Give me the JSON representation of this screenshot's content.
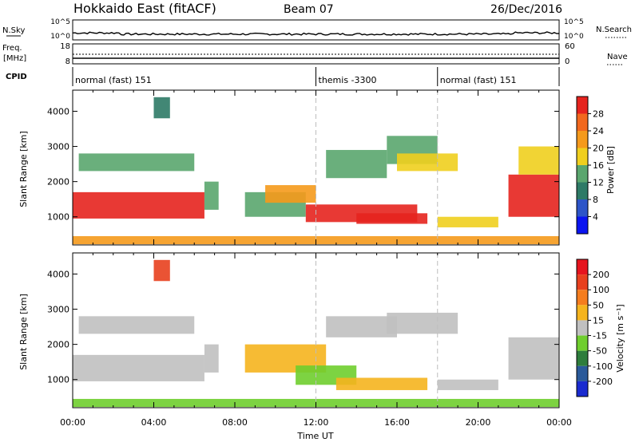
{
  "header": {
    "station": "Hokkaido East (fitACF)",
    "beam": "Beam 07",
    "date": "26/Dec/2016"
  },
  "nsky_panel": {
    "left_label": "N.Sky",
    "right_label": "N.Search",
    "left_ticks": [
      "10^5",
      "10^0"
    ],
    "right_ticks": [
      "10^5",
      "10^0"
    ]
  },
  "freq_panel": {
    "left_label_1": "Freq.",
    "left_label_2": "[MHz]",
    "right_label": "Nave",
    "left_ticks": [
      "18",
      "8"
    ],
    "right_ticks": [
      "60",
      "0"
    ]
  },
  "cpid_panel": {
    "label": "CPID",
    "segments": [
      {
        "text": "normal (fast) 151",
        "start_h": 0,
        "end_h": 12
      },
      {
        "text": "themis -3300",
        "start_h": 12,
        "end_h": 18
      },
      {
        "text": "normal (fast) 151",
        "start_h": 18,
        "end_h": 24
      }
    ]
  },
  "chart_data": [
    {
      "type": "heatmap",
      "name": "power",
      "ylabel": "Slant Range [km]",
      "yticks": [
        1000,
        2000,
        3000,
        4000
      ],
      "ylim": [
        200,
        4600
      ],
      "xlim": [
        0,
        24
      ],
      "colorbar": {
        "label": "Power [dB]",
        "ticks": [
          "4",
          "8",
          "12",
          "16",
          "20",
          "24",
          "28"
        ],
        "colors": [
          "#0a14f0",
          "#2d55c8",
          "#2e7a66",
          "#5aa66e",
          "#f0cf1e",
          "#f59a1c",
          "#f2681e",
          "#e6231e"
        ],
        "bins": [
          0,
          4,
          8,
          12,
          16,
          20,
          24,
          28,
          32
        ]
      },
      "regions": [
        {
          "x0": 0.0,
          "x1": 6.5,
          "y0": 950,
          "y1": 1700,
          "v": 29
        },
        {
          "x0": 0.3,
          "x1": 6.0,
          "y0": 2300,
          "y1": 2800,
          "v": 14
        },
        {
          "x0": 4.0,
          "x1": 4.8,
          "y0": 3800,
          "y1": 4400,
          "v": 10
        },
        {
          "x0": 6.5,
          "x1": 7.2,
          "y0": 1200,
          "y1": 2000,
          "v": 12
        },
        {
          "x0": 8.5,
          "x1": 11.5,
          "y0": 1000,
          "y1": 1700,
          "v": 12
        },
        {
          "x0": 9.5,
          "x1": 12.0,
          "y0": 1400,
          "y1": 1900,
          "v": 20
        },
        {
          "x0": 11.5,
          "x1": 17.0,
          "y0": 850,
          "y1": 1350,
          "v": 28
        },
        {
          "x0": 14.0,
          "x1": 17.5,
          "y0": 800,
          "y1": 1100,
          "v": 30
        },
        {
          "x0": 12.5,
          "x1": 15.5,
          "y0": 2100,
          "y1": 2900,
          "v": 14
        },
        {
          "x0": 15.5,
          "x1": 18.0,
          "y0": 2500,
          "y1": 3300,
          "v": 12
        },
        {
          "x0": 16.0,
          "x1": 19.0,
          "y0": 2300,
          "y1": 2800,
          "v": 18
        },
        {
          "x0": 18.0,
          "x1": 21.0,
          "y0": 700,
          "y1": 1000,
          "v": 16
        },
        {
          "x0": 21.5,
          "x1": 24.0,
          "y0": 1000,
          "y1": 2200,
          "v": 29
        },
        {
          "x0": 22.0,
          "x1": 24.0,
          "y0": 2200,
          "y1": 3000,
          "v": 18
        },
        {
          "x0": 0.0,
          "x1": 24.0,
          "y0": 220,
          "y1": 450,
          "v": 22
        }
      ]
    },
    {
      "type": "heatmap",
      "name": "velocity",
      "ylabel": "Slant Range [km]",
      "yticks": [
        1000,
        2000,
        3000,
        4000
      ],
      "ylim": [
        200,
        4600
      ],
      "xlim": [
        0,
        24
      ],
      "xticks": [
        "00:00",
        "04:00",
        "08:00",
        "12:00",
        "16:00",
        "20:00",
        "00:00"
      ],
      "xlabel": "Time UT",
      "colorbar": {
        "label": "Velocity [m s⁻¹]",
        "ticks": [
          "200",
          "100",
          "50",
          "15",
          "-15",
          "-50",
          "-100",
          "-200"
        ],
        "colors": [
          "#1a2bd0",
          "#2a5a9a",
          "#2e7d3c",
          "#6fce2e",
          "#c0c0c0",
          "#f5b41e",
          "#f57d1e",
          "#e8401e",
          "#e6141e"
        ],
        "bins": [
          -300,
          -200,
          -100,
          -50,
          -15,
          15,
          50,
          100,
          200,
          300
        ]
      },
      "regions": [
        {
          "x0": 0.0,
          "x1": 6.5,
          "y0": 950,
          "y1": 1700,
          "v": 0
        },
        {
          "x0": 0.3,
          "x1": 6.0,
          "y0": 2300,
          "y1": 2800,
          "v": 0
        },
        {
          "x0": 4.0,
          "x1": 4.8,
          "y0": 3800,
          "y1": 4400,
          "v": 150
        },
        {
          "x0": 6.5,
          "x1": 7.2,
          "y0": 1200,
          "y1": 2000,
          "v": 0
        },
        {
          "x0": 8.5,
          "x1": 12.5,
          "y0": 1200,
          "y1": 2000,
          "v": 30
        },
        {
          "x0": 11.0,
          "x1": 14.0,
          "y0": 850,
          "y1": 1400,
          "v": -40
        },
        {
          "x0": 13.0,
          "x1": 17.5,
          "y0": 700,
          "y1": 1050,
          "v": 30
        },
        {
          "x0": 12.5,
          "x1": 16.0,
          "y0": 2200,
          "y1": 2800,
          "v": 0
        },
        {
          "x0": 15.5,
          "x1": 19.0,
          "y0": 2300,
          "y1": 2900,
          "v": 0
        },
        {
          "x0": 18.0,
          "x1": 21.0,
          "y0": 700,
          "y1": 1000,
          "v": 0
        },
        {
          "x0": 21.5,
          "x1": 24.0,
          "y0": 1000,
          "y1": 2200,
          "v": 0
        },
        {
          "x0": 0.0,
          "x1": 24.0,
          "y0": 220,
          "y1": 450,
          "v": -30
        }
      ]
    }
  ]
}
